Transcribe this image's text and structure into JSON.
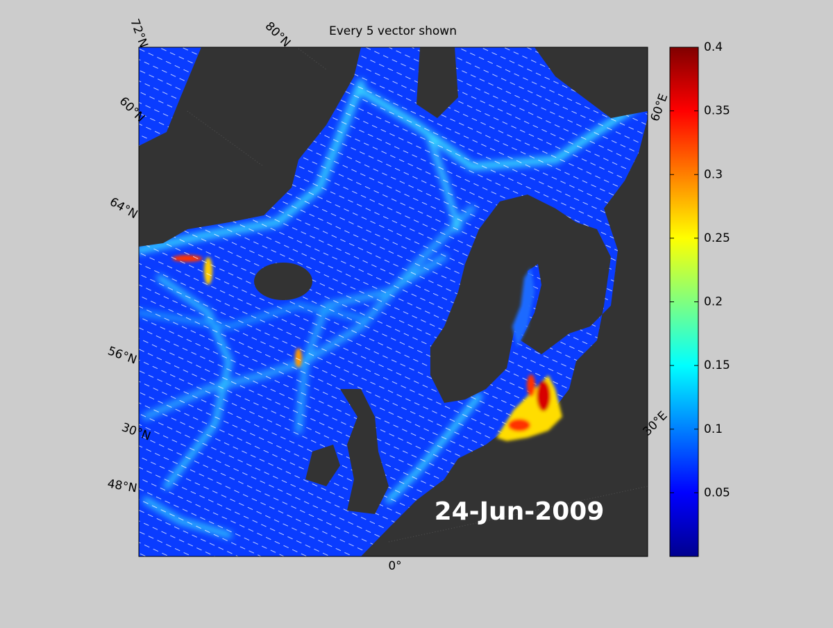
{
  "title": "Every 5 vector shown",
  "date_label": "24-Jun-2009",
  "graticule_labels": [
    "72°N",
    "80°N",
    "60°N",
    "64°N",
    "56°N",
    "30°N",
    "48°N",
    "0°",
    "60°E",
    "30°E"
  ],
  "colorbar": {
    "lim": [
      0,
      0.4
    ],
    "ticks": [
      0.05,
      0.1,
      0.15,
      0.2,
      0.25,
      0.3,
      0.35,
      0.4
    ],
    "colormap": "jet"
  }
}
